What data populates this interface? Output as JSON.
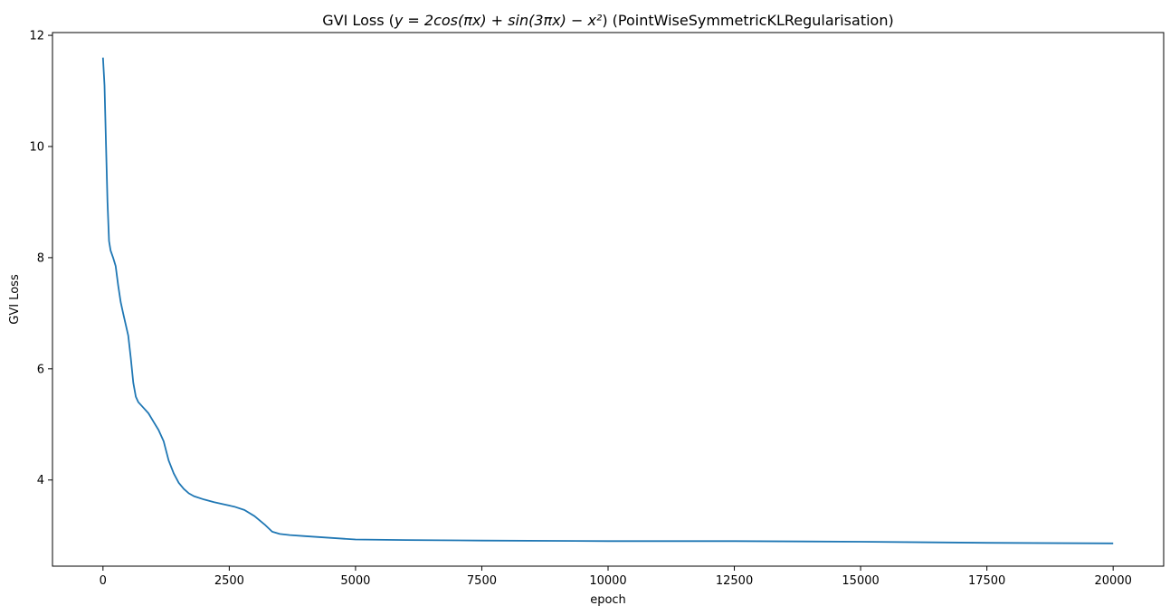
{
  "chart_data": {
    "type": "line",
    "title": {
      "prefix": "GVI Loss (",
      "equation": "y = 2cos(πx) + sin(3πx) − x²",
      "suffix": ") (PointWiseSymmetricKLRegularisation)"
    },
    "xlabel": "epoch",
    "ylabel": "GVI Loss",
    "xlim": [
      -1000,
      21000
    ],
    "ylim": [
      2.45,
      12.05
    ],
    "xticks": [
      0,
      2500,
      5000,
      7500,
      10000,
      12500,
      15000,
      17500,
      20000
    ],
    "yticks": [
      4,
      6,
      8,
      10,
      12
    ],
    "grid": false,
    "series": [
      {
        "color": "#1f77b4",
        "points": [
          [
            0,
            11.6
          ],
          [
            30,
            11.1
          ],
          [
            60,
            10.0
          ],
          [
            90,
            9.0
          ],
          [
            120,
            8.3
          ],
          [
            150,
            8.13
          ],
          [
            200,
            8.0
          ],
          [
            250,
            7.85
          ],
          [
            300,
            7.5
          ],
          [
            350,
            7.2
          ],
          [
            400,
            7.0
          ],
          [
            450,
            6.8
          ],
          [
            500,
            6.6
          ],
          [
            550,
            6.2
          ],
          [
            600,
            5.75
          ],
          [
            650,
            5.5
          ],
          [
            700,
            5.4
          ],
          [
            800,
            5.3
          ],
          [
            900,
            5.2
          ],
          [
            1000,
            5.05
          ],
          [
            1100,
            4.9
          ],
          [
            1200,
            4.7
          ],
          [
            1300,
            4.35
          ],
          [
            1400,
            4.12
          ],
          [
            1500,
            3.95
          ],
          [
            1600,
            3.84
          ],
          [
            1700,
            3.76
          ],
          [
            1800,
            3.71
          ],
          [
            2000,
            3.65
          ],
          [
            2200,
            3.6
          ],
          [
            2400,
            3.56
          ],
          [
            2600,
            3.52
          ],
          [
            2800,
            3.46
          ],
          [
            3000,
            3.35
          ],
          [
            3200,
            3.2
          ],
          [
            3350,
            3.07
          ],
          [
            3500,
            3.03
          ],
          [
            3700,
            3.01
          ],
          [
            4000,
            2.99
          ],
          [
            4500,
            2.96
          ],
          [
            5000,
            2.93
          ],
          [
            6000,
            2.92
          ],
          [
            7500,
            2.91
          ],
          [
            10000,
            2.9
          ],
          [
            12500,
            2.9
          ],
          [
            15000,
            2.89
          ],
          [
            17500,
            2.87
          ],
          [
            20000,
            2.86
          ]
        ]
      }
    ]
  }
}
